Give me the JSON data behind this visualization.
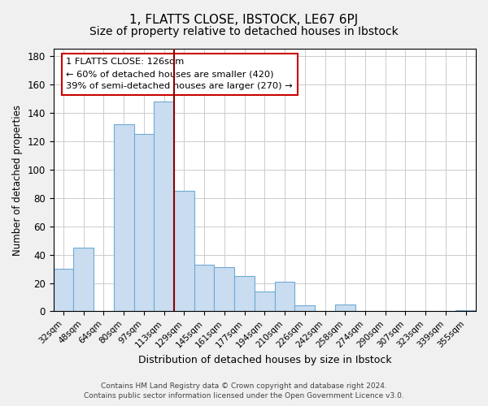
{
  "title": "1, FLATTS CLOSE, IBSTOCK, LE67 6PJ",
  "subtitle": "Size of property relative to detached houses in Ibstock",
  "xlabel": "Distribution of detached houses by size in Ibstock",
  "ylabel": "Number of detached properties",
  "bar_labels": [
    "32sqm",
    "48sqm",
    "64sqm",
    "80sqm",
    "97sqm",
    "113sqm",
    "129sqm",
    "145sqm",
    "161sqm",
    "177sqm",
    "194sqm",
    "210sqm",
    "226sqm",
    "242sqm",
    "258sqm",
    "274sqm",
    "290sqm",
    "307sqm",
    "323sqm",
    "339sqm",
    "355sqm"
  ],
  "bar_values": [
    30,
    45,
    0,
    132,
    125,
    148,
    85,
    33,
    31,
    25,
    14,
    21,
    4,
    0,
    5,
    0,
    0,
    0,
    0,
    0,
    1
  ],
  "bar_color": "#c9dcf0",
  "bar_edge_color": "#6faad4",
  "vline_color": "#8b0000",
  "vline_index": 5,
  "annotation_line1": "1 FLATTS CLOSE: 126sqm",
  "annotation_line2": "← 60% of detached houses are smaller (420)",
  "annotation_line3": "39% of semi-detached houses are larger (270) →",
  "annotation_box_facecolor": "#ffffff",
  "annotation_box_edgecolor": "#cc0000",
  "ylim": [
    0,
    185
  ],
  "yticks": [
    0,
    20,
    40,
    60,
    80,
    100,
    120,
    140,
    160,
    180
  ],
  "footer1": "Contains HM Land Registry data © Crown copyright and database right 2024.",
  "footer2": "Contains public sector information licensed under the Open Government Licence v3.0.",
  "bg_color": "#f0f0f0",
  "plot_bg_color": "#ffffff",
  "grid_color": "#cccccc",
  "title_fontsize": 11,
  "subtitle_fontsize": 10
}
